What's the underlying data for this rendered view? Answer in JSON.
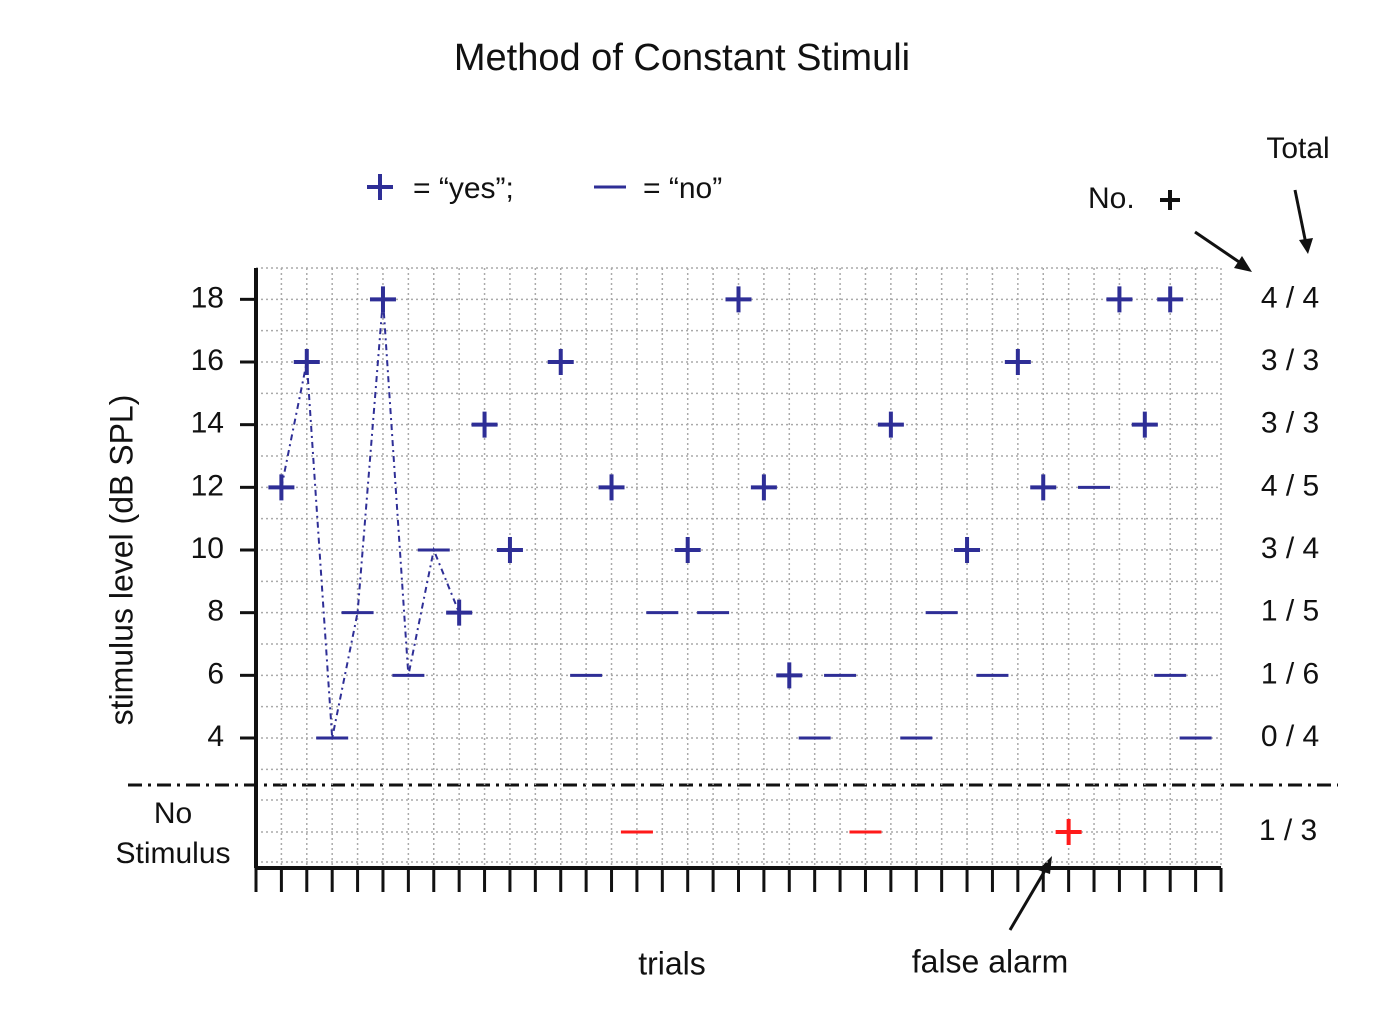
{
  "chart_data": {
    "type": "scatter",
    "title": "Method of Constant Stimuli",
    "y_label": "stimulus level (dB SPL)",
    "x_label": "trials",
    "legend": [
      "= “yes”;",
      "= “no”"
    ],
    "count_header": "No.",
    "total_header": "Total",
    "no_stimulus_label": [
      "No",
      "Stimulus"
    ],
    "false_alarm_label": "false alarm",
    "row_totals": [
      "0 / 4",
      "1 / 6",
      "1 / 5",
      "3 / 4",
      "4 / 5",
      "3 / 3",
      "3 / 3",
      "4 / 4"
    ],
    "no_stimulus_total": "1 / 3",
    "x": [
      1,
      2,
      3,
      4,
      5,
      6,
      7,
      8,
      9,
      10,
      12,
      13,
      14,
      15,
      16,
      17,
      18,
      19,
      20,
      21,
      22,
      23,
      24,
      25,
      26,
      27,
      28,
      29,
      30,
      31,
      32,
      33,
      34,
      35,
      36,
      36,
      37
    ],
    "levels": [
      12,
      16,
      4,
      8,
      18,
      6,
      10,
      8,
      14,
      10,
      16,
      6,
      12,
      null,
      8,
      10,
      8,
      18,
      12,
      6,
      4,
      6,
      null,
      14,
      4,
      8,
      10,
      6,
      16,
      12,
      null,
      12,
      18,
      14,
      18,
      6,
      4
    ],
    "yes": [
      true,
      true,
      false,
      false,
      true,
      false,
      false,
      true,
      true,
      true,
      true,
      false,
      true,
      false,
      false,
      true,
      false,
      true,
      true,
      true,
      false,
      false,
      false,
      true,
      false,
      false,
      true,
      false,
      true,
      true,
      true,
      false,
      true,
      true,
      true,
      false,
      false
    ],
    "trace_trials": 8,
    "color": "#2e2e96",
    "false_alarm_color": "#ff1a1a",
    "xlim": [
      0,
      38
    ],
    "xticks": [
      0,
      1,
      2,
      3,
      4,
      5,
      6,
      7,
      8,
      9,
      10,
      11,
      12,
      13,
      14,
      15,
      16,
      17,
      18,
      19,
      20,
      21,
      22,
      23,
      24,
      25,
      26,
      27,
      28,
      29,
      30,
      31,
      32,
      33,
      34,
      35,
      36,
      37,
      38
    ],
    "ylim": [
      2.5,
      19
    ],
    "yticks": [
      4,
      6,
      8,
      10,
      12,
      14,
      16,
      18
    ],
    "yticks_minor": [
      3,
      5,
      7,
      9,
      11,
      13,
      15,
      17,
      19
    ],
    "grid": true
  }
}
